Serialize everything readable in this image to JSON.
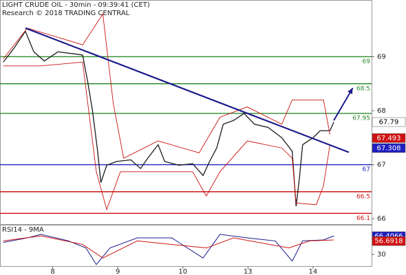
{
  "chart_data": [
    {
      "type": "line",
      "title": "LIGHT CRUDE OIL - 30min - 09:39:41 (CET)",
      "subtitle": "Research © 2018 TRADING CENTRAL",
      "xlim": [
        0.19,
        5.9
      ],
      "ylim": [
        65.9,
        70.05
      ],
      "yticks": [
        66,
        67,
        68,
        69
      ],
      "series": [
        {
          "name": "Price",
          "color": "#1a1a1a",
          "width": 1.3,
          "x": [
            0.24,
            0.4,
            0.58,
            0.71,
            0.87,
            1.08,
            1.35,
            1.46,
            1.54,
            1.61,
            1.69,
            1.74,
            1.83,
            1.98,
            2.2,
            2.35,
            2.46,
            2.62,
            2.72,
            2.94,
            3.15,
            3.31,
            3.41,
            3.52,
            3.62,
            3.78,
            3.94,
            4.1,
            4.31,
            4.52,
            4.68,
            4.74,
            4.79,
            4.84,
            5.0,
            5.11,
            5.26,
            5.32
          ],
          "values": [
            68.9,
            69.15,
            69.47,
            69.09,
            68.92,
            69.09,
            69.05,
            69.03,
            68.52,
            68.01,
            67.25,
            66.67,
            66.99,
            67.06,
            67.09,
            66.93,
            67.12,
            67.37,
            67.06,
            66.99,
            67.02,
            66.8,
            67.06,
            67.31,
            67.75,
            67.82,
            67.95,
            67.75,
            67.69,
            67.5,
            67.25,
            66.23,
            66.74,
            67.37,
            67.5,
            67.63,
            67.63,
            67.79
          ]
        },
        {
          "name": "Upper band",
          "color": "#cc1111",
          "width": 0.9,
          "x": [
            0.24,
            0.61,
            1.46,
            1.77,
            1.93,
            2.09,
            2.62,
            3.25,
            3.57,
            3.99,
            4.52,
            4.68,
            5.16,
            5.26
          ],
          "values": [
            68.96,
            69.53,
            69.22,
            69.79,
            68.14,
            67.12,
            67.44,
            67.22,
            67.88,
            68.07,
            67.75,
            68.2,
            68.2,
            67.56
          ]
        },
        {
          "name": "Lower band",
          "color": "#cc1111",
          "width": 0.9,
          "x": [
            0.24,
            0.82,
            1.46,
            1.67,
            1.83,
            2.04,
            2.62,
            3.15,
            3.36,
            3.57,
            3.99,
            4.52,
            4.68,
            4.74,
            5.05,
            5.16,
            5.26
          ],
          "values": [
            68.83,
            68.83,
            68.9,
            66.87,
            66.17,
            66.87,
            66.87,
            66.87,
            66.42,
            66.87,
            67.44,
            67.31,
            67.12,
            66.29,
            66.26,
            66.61,
            67.37
          ]
        }
      ],
      "levels": [
        {
          "value": 69,
          "color": "#2e8b2e"
        },
        {
          "value": 68.5,
          "color": "#2e8b2e"
        },
        {
          "value": 67.95,
          "color": "#2e8b2e"
        },
        {
          "value": 67,
          "color": "#1f1fbf"
        },
        {
          "value": 66.5,
          "color": "#d01010"
        },
        {
          "value": 66.1,
          "color": "#d01010"
        }
      ],
      "trendline": {
        "x": [
          0.58,
          5.55
        ],
        "values": [
          69.53,
          67.23
        ],
        "color": "#1a1a8c"
      },
      "arrow": {
        "x": [
          5.32,
          5.61
        ],
        "values": [
          67.82,
          68.42
        ],
        "color": "#1a1a8c"
      },
      "price_tags": [
        {
          "value": 67.79,
          "label": "67.79",
          "color": "#ffffff"
        },
        {
          "value": 67.493,
          "label": "67.493",
          "color": "#d01010"
        },
        {
          "value": 67.308,
          "label": "67.308",
          "color": "#1f1fbf"
        }
      ]
    },
    {
      "type": "line",
      "title": "RSI14 - 9MA",
      "xlim": [
        0.19,
        5.9
      ],
      "ylim": [
        7,
        89
      ],
      "yticks": [
        30
      ],
      "xticks": [
        {
          "value": 1,
          "label": "8"
        },
        {
          "value": 2,
          "label": "9"
        },
        {
          "value": 3,
          "label": "10"
        },
        {
          "value": 4,
          "label": "13"
        },
        {
          "value": 5,
          "label": "14"
        }
      ],
      "series": [
        {
          "name": "RSI14",
          "color": "#1a1a8c",
          "width": 1,
          "x": [
            0.24,
            0.61,
            0.82,
            1.24,
            1.51,
            1.67,
            1.88,
            2.3,
            2.83,
            3.31,
            3.57,
            3.99,
            4.42,
            4.68,
            4.84,
            5.16,
            5.32
          ],
          "values": [
            54,
            63,
            70,
            57,
            43,
            10,
            43,
            63,
            63,
            23,
            70,
            63,
            57,
            17,
            57,
            59,
            67
          ]
        },
        {
          "name": "9MA",
          "color": "#cc1111",
          "width": 1,
          "x": [
            0.24,
            0.82,
            1.46,
            1.77,
            2.3,
            3.36,
            3.78,
            4.63,
            4.95,
            5.32
          ],
          "values": [
            57,
            67,
            50,
            23,
            57,
            43,
            63,
            43,
            57,
            59
          ]
        }
      ],
      "price_tags": [
        {
          "value": 66.4066,
          "label": "66.4066",
          "color": "#1f1fbf"
        },
        {
          "value": 56.6918,
          "label": "56.6918",
          "color": "#d01010"
        }
      ]
    }
  ]
}
